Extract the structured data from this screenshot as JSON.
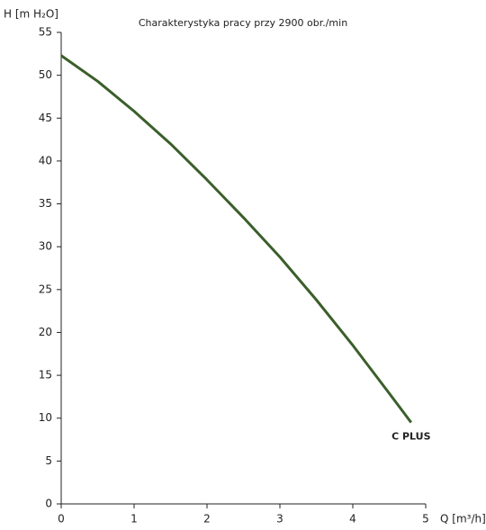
{
  "chart_data": {
    "type": "line",
    "title": "Charakterystyka pracy przy 2900 obr./min",
    "x_label": "Q [m³/h]",
    "y_label": "H [m H₂O]",
    "x": [
      0,
      0.5,
      1,
      1.5,
      2,
      2.5,
      3,
      3.5,
      4,
      4.5,
      4.8
    ],
    "series": [
      {
        "name": "C PLUS",
        "color": "#3b5f2b",
        "values": [
          52.3,
          49.3,
          45.8,
          42,
          37.8,
          33.4,
          28.8,
          23.8,
          18.5,
          12.9,
          9.5
        ]
      }
    ],
    "xlim": [
      0,
      5
    ],
    "xticks": [
      0,
      1,
      2,
      3,
      4,
      5
    ],
    "ylim": [
      0,
      55
    ],
    "yticks": [
      0,
      5,
      10,
      15,
      20,
      25,
      30,
      35,
      40,
      45,
      50,
      55
    ],
    "grid": false
  }
}
